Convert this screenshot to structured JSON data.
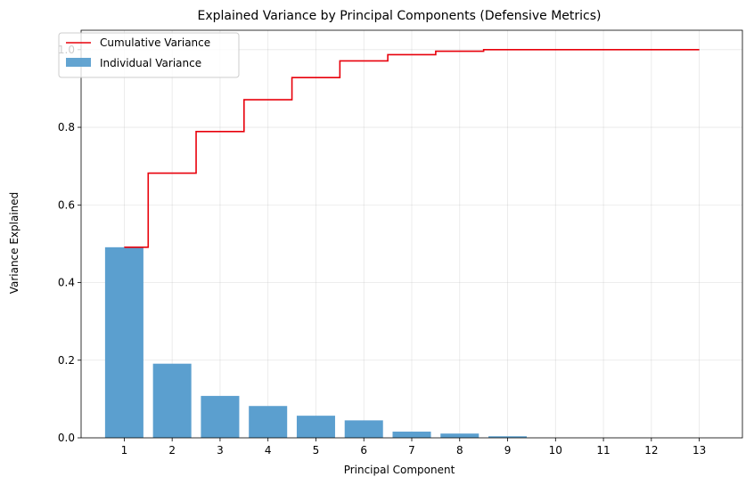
{
  "chart_data": {
    "type": "bar",
    "title": "Explained Variance by Principal Components (Defensive Metrics)",
    "xlabel": "Principal Component",
    "ylabel": "Variance Explained",
    "categories": [
      "1",
      "2",
      "3",
      "4",
      "5",
      "6",
      "7",
      "8",
      "9",
      "10",
      "11",
      "12",
      "13"
    ],
    "series": [
      {
        "name": "Individual Variance",
        "kind": "bar",
        "color": "#5b9fcf",
        "values": [
          0.491,
          0.191,
          0.108,
          0.082,
          0.057,
          0.045,
          0.016,
          0.011,
          0.004,
          0.0,
          0.0,
          0.0,
          0.0
        ]
      },
      {
        "name": "Cumulative Variance",
        "kind": "step",
        "color": "#e8000b",
        "values": [
          0.491,
          0.682,
          0.789,
          0.871,
          0.928,
          0.971,
          0.987,
          0.996,
          1.0,
          1.0,
          1.0,
          1.0,
          1.0
        ]
      }
    ],
    "xlim": [
      0.1,
      13.9
    ],
    "ylim": [
      0,
      1.05
    ],
    "yticks": [
      0.0,
      0.2,
      0.4,
      0.6,
      0.8,
      1.0
    ],
    "ytick_labels": [
      "0.0",
      "0.2",
      "0.4",
      "0.6",
      "0.8",
      "1.0"
    ],
    "grid": true,
    "legend_position": "top-left"
  }
}
